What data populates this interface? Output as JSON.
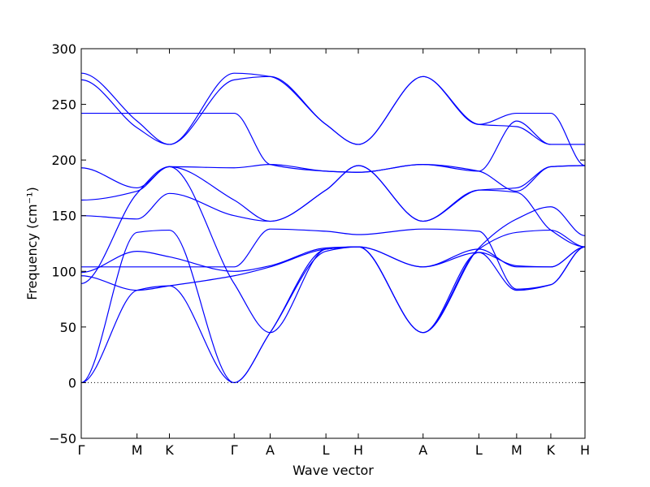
{
  "chart_data": {
    "type": "line",
    "xlabel": "Wave vector",
    "ylabel": "Frequency (cm⁻¹)",
    "ylim": [
      -50,
      300
    ],
    "xlim": [
      0,
      14
    ],
    "yticks": [
      -50,
      0,
      50,
      100,
      150,
      200,
      250,
      300
    ],
    "grid": false,
    "legend": "none",
    "color": "#0000ff",
    "zero_line": true,
    "kpoints": [
      {
        "label": "Γ",
        "x": 0
      },
      {
        "label": "M",
        "x": 1.55
      },
      {
        "label": "K",
        "x": 2.45
      },
      {
        "label": "Γ",
        "x": 4.25
      },
      {
        "label": "A",
        "x": 5.25
      },
      {
        "label": "L",
        "x": 6.8
      },
      {
        "label": "H",
        "x": 7.7
      },
      {
        "label": "A",
        "x": 9.5
      },
      {
        "label": "L",
        "x": 11.05
      },
      {
        "label": "M",
        "x": 12.1
      },
      {
        "label": "K",
        "x": 13.05
      },
      {
        "label": "H",
        "x": 14
      }
    ],
    "series": [
      {
        "x": [
          0,
          1.55,
          2.45,
          4.25,
          5.25,
          6.8,
          7.7,
          9.5,
          11.05,
          12.1,
          13.05,
          14
        ],
        "values": [
          0,
          83,
          87,
          0,
          45,
          118,
          122,
          104,
          117,
          83,
          88,
          122
        ]
      },
      {
        "x": [
          0,
          1.55,
          2.45,
          4.25,
          5.25,
          6.8,
          7.7,
          9.5,
          11.05,
          12.1,
          13.05,
          14
        ],
        "values": [
          0,
          135,
          137,
          0,
          45,
          120,
          122,
          45,
          120,
          135,
          137,
          122
        ]
      },
      {
        "x": [
          0,
          1.55,
          2.45,
          4.25,
          5.25,
          6.8,
          7.7,
          9.5,
          11.05,
          12.1,
          13.05,
          14
        ],
        "values": [
          89,
          170,
          194,
          89,
          45,
          120,
          122,
          45,
          121,
          147,
          158,
          132
        ]
      },
      {
        "x": [
          0,
          1.55,
          2.45,
          4.25,
          5.25,
          6.8,
          7.7,
          9.5,
          11.05,
          12.1,
          13.05,
          14
        ],
        "values": [
          96,
          83,
          87,
          96,
          104,
          120,
          122,
          45,
          117,
          105,
          104,
          122
        ]
      },
      {
        "x": [
          0,
          1.55,
          2.45,
          4.25,
          5.25,
          6.8,
          7.7,
          9.5,
          11.05,
          12.1,
          13.05,
          14
        ],
        "values": [
          99,
          118,
          113,
          100,
          105,
          121,
          122,
          104,
          120,
          104,
          104,
          122
        ]
      },
      {
        "x": [
          0,
          1.55,
          2.45,
          4.25,
          5.25,
          6.8,
          7.7,
          9.5,
          11.05,
          12.1,
          13.05,
          14
        ],
        "values": [
          104,
          104,
          104,
          104,
          138,
          136,
          133,
          138,
          136,
          84,
          88,
          122
        ]
      },
      {
        "x": [
          0,
          1.55,
          2.45,
          4.25,
          5.25,
          6.8,
          7.7,
          9.5,
          11.05,
          12.1,
          13.05,
          14
        ],
        "values": [
          150,
          147,
          170,
          150,
          145,
          173,
          195,
          145,
          173,
          171,
          137,
          122
        ]
      },
      {
        "x": [
          0,
          1.55,
          2.45,
          4.25,
          5.25,
          6.8,
          7.7,
          9.5,
          11.05,
          12.1,
          13.05,
          14
        ],
        "values": [
          164,
          172,
          194,
          164,
          145,
          173,
          195,
          145,
          173,
          175,
          194,
          195
        ]
      },
      {
        "x": [
          0,
          1.55,
          2.45,
          4.25,
          5.25,
          6.8,
          7.7,
          9.5,
          11.05,
          12.1,
          13.05,
          14
        ],
        "values": [
          193,
          175,
          194,
          193,
          196,
          190,
          189,
          196,
          190,
          172,
          194,
          195
        ]
      },
      {
        "x": [
          0,
          1.55,
          2.45,
          4.25,
          5.25,
          6.8,
          7.7,
          9.5,
          11.05,
          12.1,
          13.05,
          14
        ],
        "values": [
          242,
          242,
          242,
          242,
          196,
          190,
          189,
          196,
          190,
          235,
          214,
          214
        ]
      },
      {
        "x": [
          0,
          1.55,
          2.45,
          4.25,
          5.25,
          6.8,
          7.7,
          9.5,
          11.05,
          12.1,
          13.05,
          14
        ],
        "values": [
          272,
          229,
          214,
          272,
          275,
          232,
          214,
          275,
          232,
          230,
          214,
          214
        ]
      },
      {
        "x": [
          0,
          1.55,
          2.45,
          4.25,
          5.25,
          6.8,
          7.7,
          9.5,
          11.05,
          12.1,
          13.05,
          14
        ],
        "values": [
          278,
          235,
          214,
          278,
          275,
          232,
          214,
          275,
          232,
          242,
          242,
          195
        ]
      }
    ]
  }
}
